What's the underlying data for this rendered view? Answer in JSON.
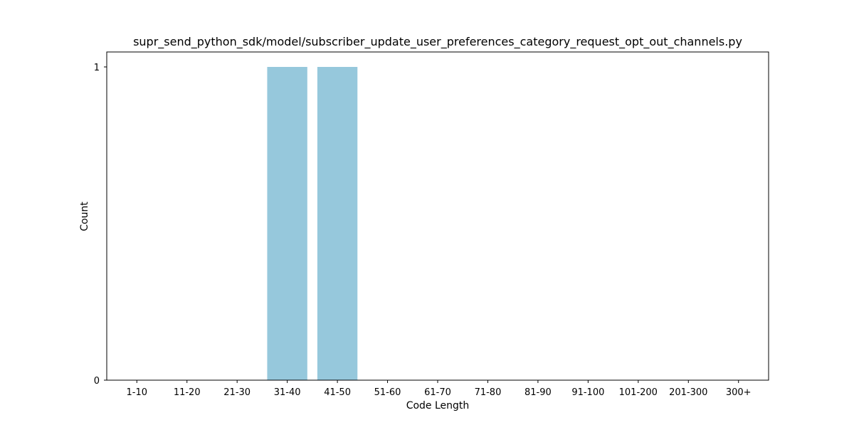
{
  "chart_data": {
    "type": "bar",
    "title": "supr_send_python_sdk/model/subscriber_update_user_preferences_category_request_opt_out_channels.py",
    "xlabel": "Code Length",
    "ylabel": "Count",
    "categories": [
      "1-10",
      "11-20",
      "21-30",
      "31-40",
      "41-50",
      "51-60",
      "61-70",
      "71-80",
      "81-90",
      "91-100",
      "101-200",
      "201-300",
      "300+"
    ],
    "values": [
      0,
      0,
      0,
      1,
      1,
      0,
      0,
      0,
      0,
      0,
      0,
      0,
      0
    ],
    "ylim": [
      0,
      1
    ],
    "yticks": [
      {
        "value": 0,
        "label": "0"
      },
      {
        "value": 1,
        "label": "1"
      }
    ],
    "grid": false,
    "bar_color": "#96c8dc"
  }
}
